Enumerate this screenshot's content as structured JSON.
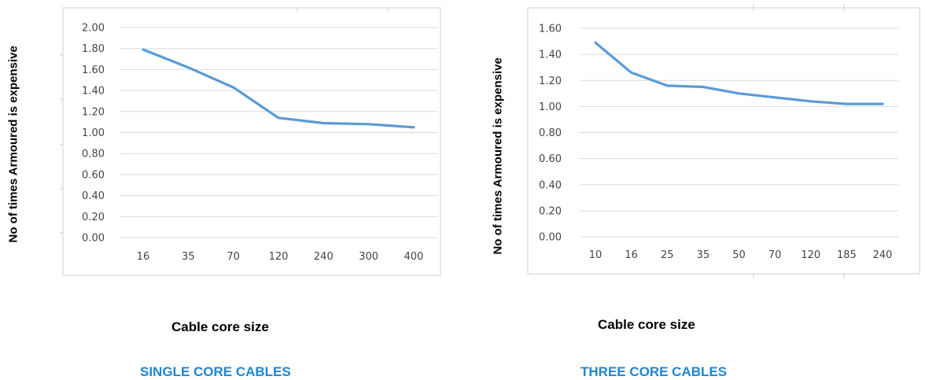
{
  "colors": {
    "line": "#5B9BD5",
    "caption": "#1F86D0",
    "grid": "#d9d9d9",
    "frame": "#d0d0d0"
  },
  "chart_data": [
    {
      "type": "line",
      "categories": [
        "16",
        "35",
        "70",
        "120",
        "240",
        "300",
        "400"
      ],
      "series": [
        {
          "values": [
            1.79,
            1.62,
            1.43,
            1.14,
            1.09,
            1.08,
            1.05
          ]
        }
      ],
      "ylabel": "No of times Armoured is expensive",
      "xlabel": "Cable core size",
      "caption": "SINGLE CORE CABLES",
      "ylim": [
        0,
        2
      ],
      "ystep": 0.2,
      "grid": true
    },
    {
      "type": "line",
      "categories": [
        "10",
        "16",
        "25",
        "35",
        "50",
        "70",
        "120",
        "185",
        "240"
      ],
      "series": [
        {
          "values": [
            1.49,
            1.26,
            1.16,
            1.15,
            1.1,
            1.07,
            1.04,
            1.02,
            1.02
          ]
        }
      ],
      "ylabel": "No of times Armoured is expensive",
      "xlabel": "Cable core size",
      "caption": "THREE CORE CABLES",
      "ylim": [
        0,
        1.6
      ],
      "ystep": 0.2,
      "grid": true
    }
  ]
}
